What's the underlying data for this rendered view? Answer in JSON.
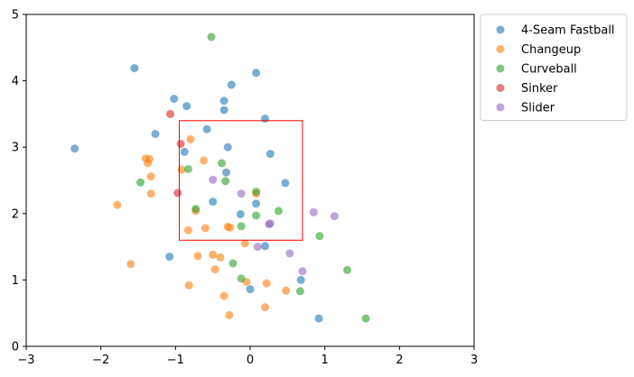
{
  "chart_data": {
    "type": "scatter",
    "xlim": [
      -3,
      3
    ],
    "ylim": [
      0,
      5
    ],
    "x_ticks": [
      "−3",
      "−2",
      "−1",
      "0",
      "1",
      "2",
      "3"
    ],
    "y_ticks": [
      "0",
      "1",
      "2",
      "3",
      "4",
      "5"
    ],
    "grid": false,
    "legend_placement": "outside-top-right",
    "strike_zone": {
      "x": [
        -0.95,
        0.7
      ],
      "y": [
        1.6,
        3.4
      ],
      "color": "#ff0000"
    },
    "series": [
      {
        "name": "4-Seam Fastball",
        "color": "#1f77b4",
        "points": [
          [
            -1.55,
            4.19
          ],
          [
            0.08,
            4.12
          ],
          [
            -0.25,
            3.94
          ],
          [
            -1.02,
            3.73
          ],
          [
            -0.85,
            3.62
          ],
          [
            -0.35,
            3.7
          ],
          [
            -0.35,
            3.56
          ],
          [
            0.2,
            3.43
          ],
          [
            -0.58,
            3.27
          ],
          [
            -1.27,
            3.2
          ],
          [
            -2.35,
            2.98
          ],
          [
            -0.3,
            3.0
          ],
          [
            -0.88,
            2.93
          ],
          [
            0.27,
            2.9
          ],
          [
            -0.32,
            2.62
          ],
          [
            0.47,
            2.46
          ],
          [
            -0.5,
            2.18
          ],
          [
            0.08,
            2.15
          ],
          [
            -0.13,
            1.99
          ],
          [
            0.2,
            1.51
          ],
          [
            -1.08,
            1.35
          ],
          [
            0.68,
            1.0
          ],
          [
            0.0,
            0.86
          ],
          [
            0.92,
            0.42
          ]
        ]
      },
      {
        "name": "Changeup",
        "color": "#ff7f0e",
        "points": [
          [
            -0.8,
            3.12
          ],
          [
            -1.4,
            2.83
          ],
          [
            -1.35,
            2.82
          ],
          [
            -1.37,
            2.76
          ],
          [
            -0.62,
            2.8
          ],
          [
            -0.92,
            2.66
          ],
          [
            -1.33,
            2.56
          ],
          [
            -1.33,
            2.3
          ],
          [
            0.08,
            2.3
          ],
          [
            -1.78,
            2.13
          ],
          [
            -0.73,
            2.04
          ],
          [
            -0.83,
            1.75
          ],
          [
            -0.6,
            1.78
          ],
          [
            -0.3,
            1.8
          ],
          [
            -0.27,
            1.79
          ],
          [
            -0.07,
            1.55
          ],
          [
            -0.5,
            1.38
          ],
          [
            -0.7,
            1.36
          ],
          [
            -0.4,
            1.34
          ],
          [
            -1.6,
            1.24
          ],
          [
            -0.47,
            1.16
          ],
          [
            -0.05,
            0.97
          ],
          [
            0.22,
            0.95
          ],
          [
            -0.82,
            0.92
          ],
          [
            0.48,
            0.84
          ],
          [
            -0.35,
            0.76
          ],
          [
            0.2,
            0.59
          ],
          [
            -0.28,
            0.47
          ]
        ]
      },
      {
        "name": "Curveball",
        "color": "#2ca02c",
        "points": [
          [
            -0.52,
            4.66
          ],
          [
            -0.83,
            2.67
          ],
          [
            -0.38,
            2.76
          ],
          [
            -0.33,
            2.49
          ],
          [
            -1.47,
            2.47
          ],
          [
            0.08,
            2.33
          ],
          [
            0.38,
            2.04
          ],
          [
            -0.73,
            2.07
          ],
          [
            0.08,
            1.97
          ],
          [
            -0.12,
            1.81
          ],
          [
            0.93,
            1.66
          ],
          [
            -0.23,
            1.25
          ],
          [
            1.3,
            1.15
          ],
          [
            -0.12,
            1.02
          ],
          [
            0.67,
            0.83
          ],
          [
            1.55,
            0.42
          ]
        ]
      },
      {
        "name": "Sinker",
        "color": "#d62728",
        "points": [
          [
            -1.07,
            3.5
          ],
          [
            -0.93,
            3.05
          ],
          [
            -0.97,
            2.31
          ]
        ]
      },
      {
        "name": "Slider",
        "color": "#9467bd",
        "points": [
          [
            -0.5,
            2.51
          ],
          [
            -0.12,
            2.3
          ],
          [
            0.85,
            2.02
          ],
          [
            1.13,
            1.96
          ],
          [
            0.27,
            1.85
          ],
          [
            0.25,
            1.84
          ],
          [
            0.1,
            1.5
          ],
          [
            0.53,
            1.4
          ],
          [
            0.7,
            1.13
          ]
        ]
      }
    ]
  }
}
